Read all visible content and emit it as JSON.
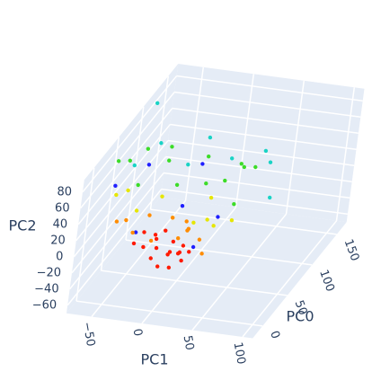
{
  "chart_data": {
    "type": "scatter3d",
    "xlabel": "PC0",
    "ylabel": "PC1",
    "zlabel": "PC2",
    "xlim": [
      -20,
      170
    ],
    "ylim": [
      -75,
      110
    ],
    "zlim": [
      -70,
      95
    ],
    "xticks": [
      0,
      50,
      100,
      150
    ],
    "yticks": [
      {
        "value": -50,
        "label": "−50"
      },
      0,
      50,
      100
    ],
    "zticks": [
      {
        "value": -60,
        "label": "−60"
      },
      {
        "value": -40,
        "label": "−40"
      },
      {
        "value": -20,
        "label": "−20"
      },
      0,
      20,
      40,
      60,
      80
    ],
    "grid": true,
    "series": [
      {
        "color": "#1f1fff",
        "x": [
          10,
          40,
          70,
          30,
          100,
          20,
          55
        ],
        "y": [
          -30,
          0,
          -50,
          20,
          -10,
          -60,
          30
        ],
        "z": [
          15,
          30,
          50,
          -10,
          35,
          60,
          10
        ]
      },
      {
        "color": "#19d3c5",
        "x": [
          60,
          90,
          120,
          140,
          80,
          150,
          110,
          100,
          120
        ],
        "y": [
          -60,
          -20,
          10,
          40,
          -45,
          30,
          -10,
          60,
          -70
        ],
        "z": [
          55,
          40,
          30,
          15,
          70,
          20,
          60,
          5,
          85
        ]
      },
      {
        "color": "#3cdc28",
        "x": [
          50,
          70,
          90,
          60,
          110,
          80,
          120,
          45,
          100,
          130,
          75,
          140,
          95,
          65
        ],
        "y": [
          -50,
          -20,
          0,
          -65,
          10,
          -35,
          20,
          -70,
          -5,
          30,
          -55,
          15,
          -40,
          40
        ],
        "z": [
          40,
          30,
          20,
          60,
          10,
          50,
          25,
          70,
          45,
          15,
          65,
          5,
          55,
          20
        ]
      },
      {
        "color": "#e6e600",
        "x": [
          30,
          45,
          55,
          40,
          60,
          35,
          50,
          70,
          25,
          65
        ],
        "y": [
          -40,
          -10,
          20,
          -55,
          5,
          35,
          -25,
          15,
          -60,
          40
        ],
        "z": [
          25,
          10,
          5,
          40,
          -5,
          15,
          30,
          20,
          45,
          0
        ]
      },
      {
        "color": "#ff8c00",
        "x": [
          15,
          25,
          35,
          20,
          40,
          30,
          10,
          45,
          28,
          38,
          18,
          50
        ],
        "y": [
          -35,
          -20,
          10,
          -45,
          0,
          25,
          -50,
          -10,
          30,
          -30,
          15,
          5
        ],
        "z": [
          10,
          -5,
          5,
          20,
          -10,
          0,
          25,
          10,
          -15,
          15,
          30,
          -5
        ]
      },
      {
        "color": "#ff1a00",
        "x": [
          5,
          12,
          8,
          20,
          15,
          3,
          25,
          10,
          18,
          7,
          22,
          14,
          30,
          9,
          16,
          4,
          27,
          11
        ],
        "y": [
          -10,
          5,
          -20,
          0,
          12,
          -5,
          -15,
          18,
          -25,
          8,
          3,
          -12,
          10,
          -30,
          22,
          -2,
          -8,
          15
        ],
        "z": [
          -10,
          -5,
          0,
          -15,
          -8,
          5,
          -2,
          -12,
          10,
          -20,
          0,
          12,
          -10,
          2,
          -5,
          -18,
          8,
          -3
        ]
      }
    ]
  }
}
